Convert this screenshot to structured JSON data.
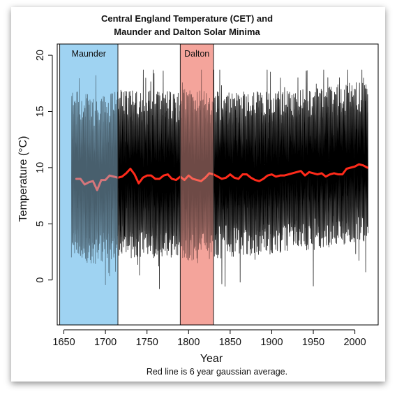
{
  "chart_data": {
    "type": "line",
    "title": "Central England Temperature (CET) and",
    "subtitle": "Maunder and Dalton Solar Minima",
    "xlabel": "Year",
    "ylabel": "Temperature (°C)",
    "caption": "Red line is 6 year gaussian average.",
    "xlim": [
      1642,
      2028
    ],
    "ylim": [
      -4,
      21
    ],
    "x_ticks": [
      1650,
      1700,
      1750,
      1800,
      1850,
      1900,
      1950,
      2000
    ],
    "y_ticks": [
      0,
      5,
      10,
      15,
      20
    ],
    "grid": false,
    "legend": "none",
    "colors": {
      "monthly_line": "#000000",
      "smooth_line": "#ff2a1a",
      "maunder_fill": "#9fd3f2",
      "dalton_fill": "#f5a49c"
    },
    "regions": [
      {
        "label": "Maunder",
        "x_start": 1645,
        "x_end": 1715
      },
      {
        "label": "Dalton",
        "x_start": 1790,
        "x_end": 1830
      }
    ],
    "series": [
      {
        "kind": "monthly",
        "x_start": 1659,
        "x_end": 2016,
        "summer_mean": [
          [
            1659,
            15.6
          ],
          [
            1670,
            15.4
          ],
          [
            1690,
            15.0
          ],
          [
            1700,
            15.3
          ],
          [
            1715,
            15.6
          ],
          [
            1750,
            15.6
          ],
          [
            1800,
            15.7
          ],
          [
            1850,
            15.5
          ],
          [
            1900,
            15.6
          ],
          [
            1950,
            15.8
          ],
          [
            1990,
            16.2
          ],
          [
            2016,
            16.5
          ]
        ],
        "winter_mean": [
          [
            1659,
            3.3
          ],
          [
            1670,
            3.0
          ],
          [
            1690,
            2.6
          ],
          [
            1700,
            3.0
          ],
          [
            1715,
            3.3
          ],
          [
            1750,
            3.2
          ],
          [
            1800,
            3.0
          ],
          [
            1850,
            3.3
          ],
          [
            1900,
            3.6
          ],
          [
            1950,
            3.9
          ],
          [
            1990,
            4.5
          ],
          [
            2016,
            4.8
          ]
        ],
        "annual_max": 18.7,
        "annual_min": -3.1
      },
      {
        "kind": "smooth",
        "values": [
          [
            1665,
            9.0
          ],
          [
            1670,
            9.0
          ],
          [
            1675,
            8.5
          ],
          [
            1680,
            8.7
          ],
          [
            1685,
            8.8
          ],
          [
            1690,
            8.0
          ],
          [
            1695,
            8.9
          ],
          [
            1700,
            8.9
          ],
          [
            1705,
            9.3
          ],
          [
            1710,
            9.2
          ],
          [
            1715,
            9.1
          ],
          [
            1720,
            9.2
          ],
          [
            1725,
            9.5
          ],
          [
            1730,
            9.9
          ],
          [
            1735,
            9.4
          ],
          [
            1740,
            8.6
          ],
          [
            1745,
            9.1
          ],
          [
            1750,
            9.3
          ],
          [
            1755,
            9.3
          ],
          [
            1760,
            9.0
          ],
          [
            1765,
            9.0
          ],
          [
            1770,
            9.3
          ],
          [
            1775,
            9.4
          ],
          [
            1780,
            9.0
          ],
          [
            1785,
            8.9
          ],
          [
            1790,
            9.2
          ],
          [
            1795,
            8.9
          ],
          [
            1800,
            9.3
          ],
          [
            1805,
            9.0
          ],
          [
            1810,
            8.9
          ],
          [
            1815,
            8.8
          ],
          [
            1820,
            9.1
          ],
          [
            1825,
            9.5
          ],
          [
            1830,
            9.4
          ],
          [
            1835,
            9.2
          ],
          [
            1840,
            9.0
          ],
          [
            1845,
            9.1
          ],
          [
            1850,
            9.4
          ],
          [
            1855,
            9.1
          ],
          [
            1860,
            9.0
          ],
          [
            1865,
            9.4
          ],
          [
            1870,
            9.4
          ],
          [
            1875,
            9.1
          ],
          [
            1880,
            8.9
          ],
          [
            1885,
            8.8
          ],
          [
            1890,
            9.0
          ],
          [
            1895,
            9.3
          ],
          [
            1900,
            9.4
          ],
          [
            1905,
            9.2
          ],
          [
            1910,
            9.3
          ],
          [
            1915,
            9.3
          ],
          [
            1920,
            9.4
          ],
          [
            1925,
            9.5
          ],
          [
            1930,
            9.6
          ],
          [
            1935,
            9.7
          ],
          [
            1940,
            9.3
          ],
          [
            1945,
            9.6
          ],
          [
            1950,
            9.5
          ],
          [
            1955,
            9.4
          ],
          [
            1960,
            9.5
          ],
          [
            1965,
            9.2
          ],
          [
            1970,
            9.4
          ],
          [
            1975,
            9.5
          ],
          [
            1980,
            9.4
          ],
          [
            1985,
            9.4
          ],
          [
            1990,
            9.9
          ],
          [
            1995,
            10.0
          ],
          [
            2000,
            10.1
          ],
          [
            2005,
            10.3
          ],
          [
            2010,
            10.2
          ],
          [
            2015,
            10.0
          ]
        ]
      }
    ]
  }
}
